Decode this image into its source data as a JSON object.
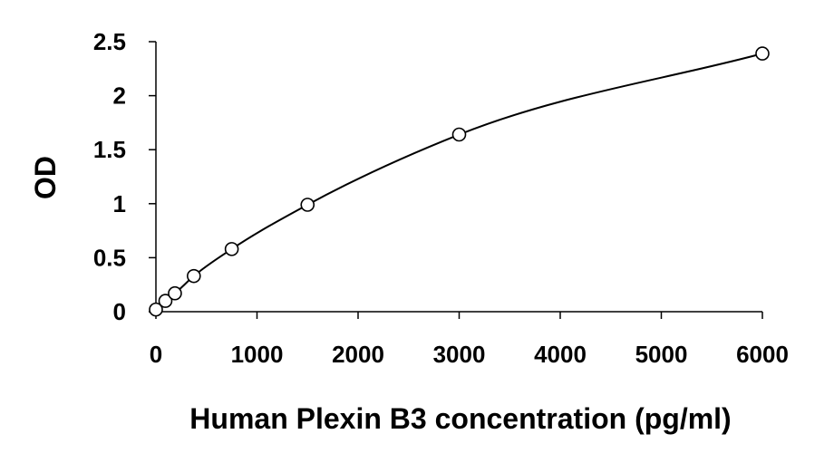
{
  "chart_data": {
    "type": "scatter",
    "title": "",
    "xlabel": "Human Plexin B3 concentration (pg/ml)",
    "ylabel": "OD",
    "xlim": [
      0,
      6000
    ],
    "ylim": [
      0,
      2.5
    ],
    "x_ticks": [
      0,
      1000,
      2000,
      3000,
      4000,
      5000,
      6000
    ],
    "x_tick_labels": [
      "0",
      "1000",
      "2000",
      "3000",
      "4000",
      "5000",
      "6000"
    ],
    "y_ticks": [
      0,
      0.5,
      1,
      1.5,
      2,
      2.5
    ],
    "y_tick_labels": [
      "0",
      "0.5",
      "1",
      "1.5",
      "2",
      "2.5"
    ],
    "grid": false,
    "legend": "none",
    "series": [
      {
        "x": [
          0,
          94,
          188,
          375,
          750,
          1500,
          3000,
          6000
        ],
        "y": [
          0.02,
          0.1,
          0.17,
          0.33,
          0.58,
          0.99,
          1.64,
          2.39
        ],
        "marker": "open-circle",
        "fit": "smooth-curve",
        "color": "#000000"
      }
    ]
  }
}
